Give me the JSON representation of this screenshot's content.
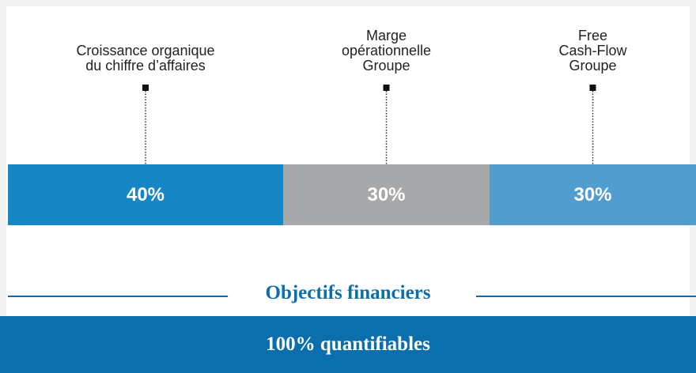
{
  "chart_data": {
    "type": "stacked-bar",
    "categories": [
      "Croissance organique\ndu chiffre d’affaires",
      "Marge\nopérationnelle\nGroupe",
      "Free\nCash-Flow\nGroupe"
    ],
    "values": [
      40,
      30,
      30
    ],
    "value_labels": [
      "40%",
      "30%",
      "30%"
    ],
    "colors": [
      "#1687c5",
      "#a7a8aa",
      "#529dd0"
    ],
    "annotations": {
      "heading": "Objectifs financiers",
      "footer": "100% quantifiables"
    },
    "heading_color": "#0b6fae"
  }
}
